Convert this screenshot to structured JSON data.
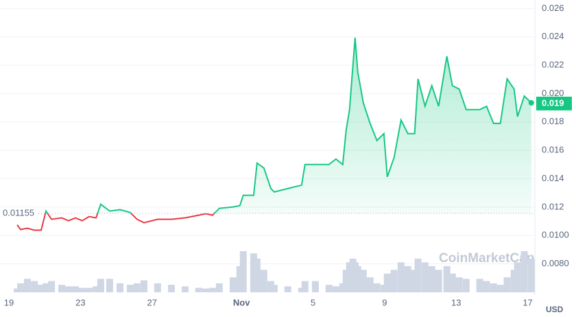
{
  "chart_data": {
    "type": "line",
    "x": [
      0.46,
      0.65,
      1.03,
      1.42,
      1.8,
      2.07,
      2.38,
      2.95,
      3.33,
      3.72,
      4.1,
      4.48,
      4.87,
      5.13,
      5.63,
      6.21,
      6.78,
      7.16,
      7.55,
      8.31,
      9.08,
      9.85,
      10.61,
      11.0,
      11.38,
      11.76,
      12.53,
      12.91,
      13.1,
      13.68,
      13.87,
      14.25,
      14.64,
      14.83,
      15.59,
      16.36,
      16.55,
      17.13,
      17.89,
      18.28,
      18.66,
      18.85,
      19.04,
      19.23,
      19.35,
      19.5,
      19.81,
      20.19,
      20.57,
      20.96,
      21.15,
      21.53,
      21.92,
      22.3,
      22.68,
      22.87,
      23.26,
      23.64,
      24.02,
      24.48,
      24.79,
      25.17,
      25.56,
      26.32,
      26.7,
      27.09,
      27.47,
      27.85,
      28.24,
      28.43,
      28.81,
      29.2
    ],
    "values": [
      0.01075,
      0.01042,
      0.01051,
      0.01037,
      0.01037,
      0.01172,
      0.01114,
      0.01124,
      0.01104,
      0.01124,
      0.01104,
      0.01133,
      0.01124,
      0.0122,
      0.01172,
      0.01182,
      0.01162,
      0.01114,
      0.0109,
      0.01114,
      0.01114,
      0.01124,
      0.01143,
      0.01153,
      0.01143,
      0.01191,
      0.01201,
      0.01211,
      0.01283,
      0.01283,
      0.0151,
      0.01476,
      0.01331,
      0.01307,
      0.01331,
      0.01355,
      0.015,
      0.015,
      0.015,
      0.01539,
      0.015,
      0.01742,
      0.01887,
      0.02201,
      0.02394,
      0.02152,
      0.01935,
      0.0179,
      0.01669,
      0.01718,
      0.01413,
      0.01549,
      0.01814,
      0.01718,
      0.01718,
      0.02104,
      0.01911,
      0.02056,
      0.01911,
      0.02263,
      0.02056,
      0.02032,
      0.01887,
      0.01887,
      0.01911,
      0.0179,
      0.0179,
      0.02104,
      0.02032,
      0.01838,
      0.01983,
      0.01935
    ],
    "volume": [
      5,
      12,
      18,
      15,
      10,
      12,
      15,
      10,
      8,
      8,
      6,
      6,
      8,
      18,
      18,
      12,
      10,
      12,
      16,
      12,
      10,
      8,
      6,
      5,
      6,
      12,
      20,
      35,
      55,
      52,
      45,
      30,
      15,
      10,
      8,
      6,
      15,
      15,
      10,
      8,
      12,
      30,
      40,
      45,
      40,
      35,
      30,
      20,
      12,
      10,
      25,
      30,
      40,
      35,
      30,
      45,
      40,
      35,
      30,
      35,
      25,
      20,
      18,
      18,
      15,
      12,
      10,
      20,
      30,
      40,
      55,
      45
    ],
    "baseline": 0.01155,
    "current": {
      "value": 0.0193,
      "label": "0.019"
    },
    "up_color": "#16c784",
    "down_color": "#ea3943",
    "volume_color": "#cfd6e4",
    "xlim": [
      -0.5,
      29.4
    ],
    "ylim": [
      0.0058,
      0.0266
    ],
    "xticks": [
      {
        "value": 0,
        "label": "19"
      },
      {
        "value": 4,
        "label": "23"
      },
      {
        "value": 8,
        "label": "27"
      },
      {
        "value": 13,
        "label": "Nov"
      },
      {
        "value": 17,
        "label": "5"
      },
      {
        "value": 21,
        "label": "9"
      },
      {
        "value": 25,
        "label": "13"
      },
      {
        "value": 29,
        "label": "17"
      }
    ],
    "yticks": [
      {
        "value": 0.008,
        "label": "0.0080"
      },
      {
        "value": 0.01,
        "label": "0.0100"
      },
      0.012,
      0.014,
      0.016,
      0.018,
      {
        "value": 0.02,
        "label": "0.020"
      },
      0.022,
      0.024,
      0.026
    ],
    "grid": true,
    "currency": "USD",
    "watermark": "CoinMarketCap"
  }
}
